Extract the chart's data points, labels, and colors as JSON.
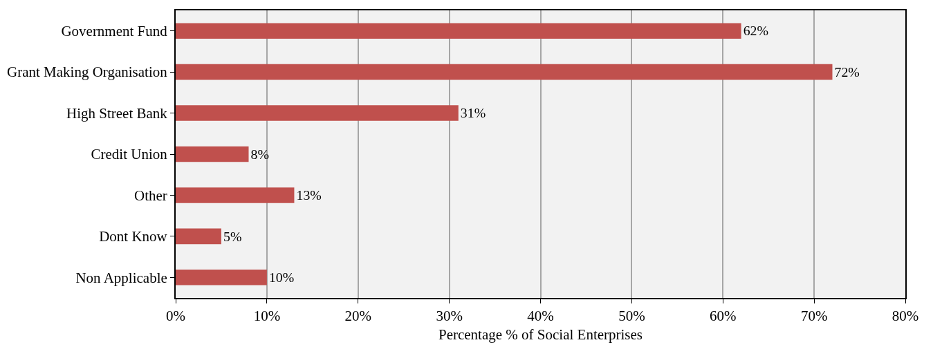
{
  "chart_data": {
    "type": "bar",
    "orientation": "horizontal",
    "xlabel": "Percentage % of Social Enterprises",
    "categories": [
      "Government Fund",
      "Grant Making Organisation",
      "High Street Bank",
      "Credit Union",
      "Other",
      "Dont Know",
      "Non Applicable"
    ],
    "values": [
      62,
      72,
      31,
      8,
      13,
      5,
      10
    ],
    "value_labels": [
      "62%",
      "72%",
      "31%",
      "8%",
      "13%",
      "5%",
      "10%"
    ],
    "color": "#c0504d",
    "xlim": [
      0,
      80
    ],
    "xticks": [
      {
        "value": 0,
        "label": "0%"
      },
      {
        "value": 10,
        "label": "10%"
      },
      {
        "value": 20,
        "label": "20%"
      },
      {
        "value": 30,
        "label": "30%"
      },
      {
        "value": 40,
        "label": "40%"
      },
      {
        "value": 50,
        "label": "50%"
      },
      {
        "value": 60,
        "label": "60%"
      },
      {
        "value": 70,
        "label": "70%"
      },
      {
        "value": 80,
        "label": "80%"
      }
    ],
    "grid": "x"
  }
}
